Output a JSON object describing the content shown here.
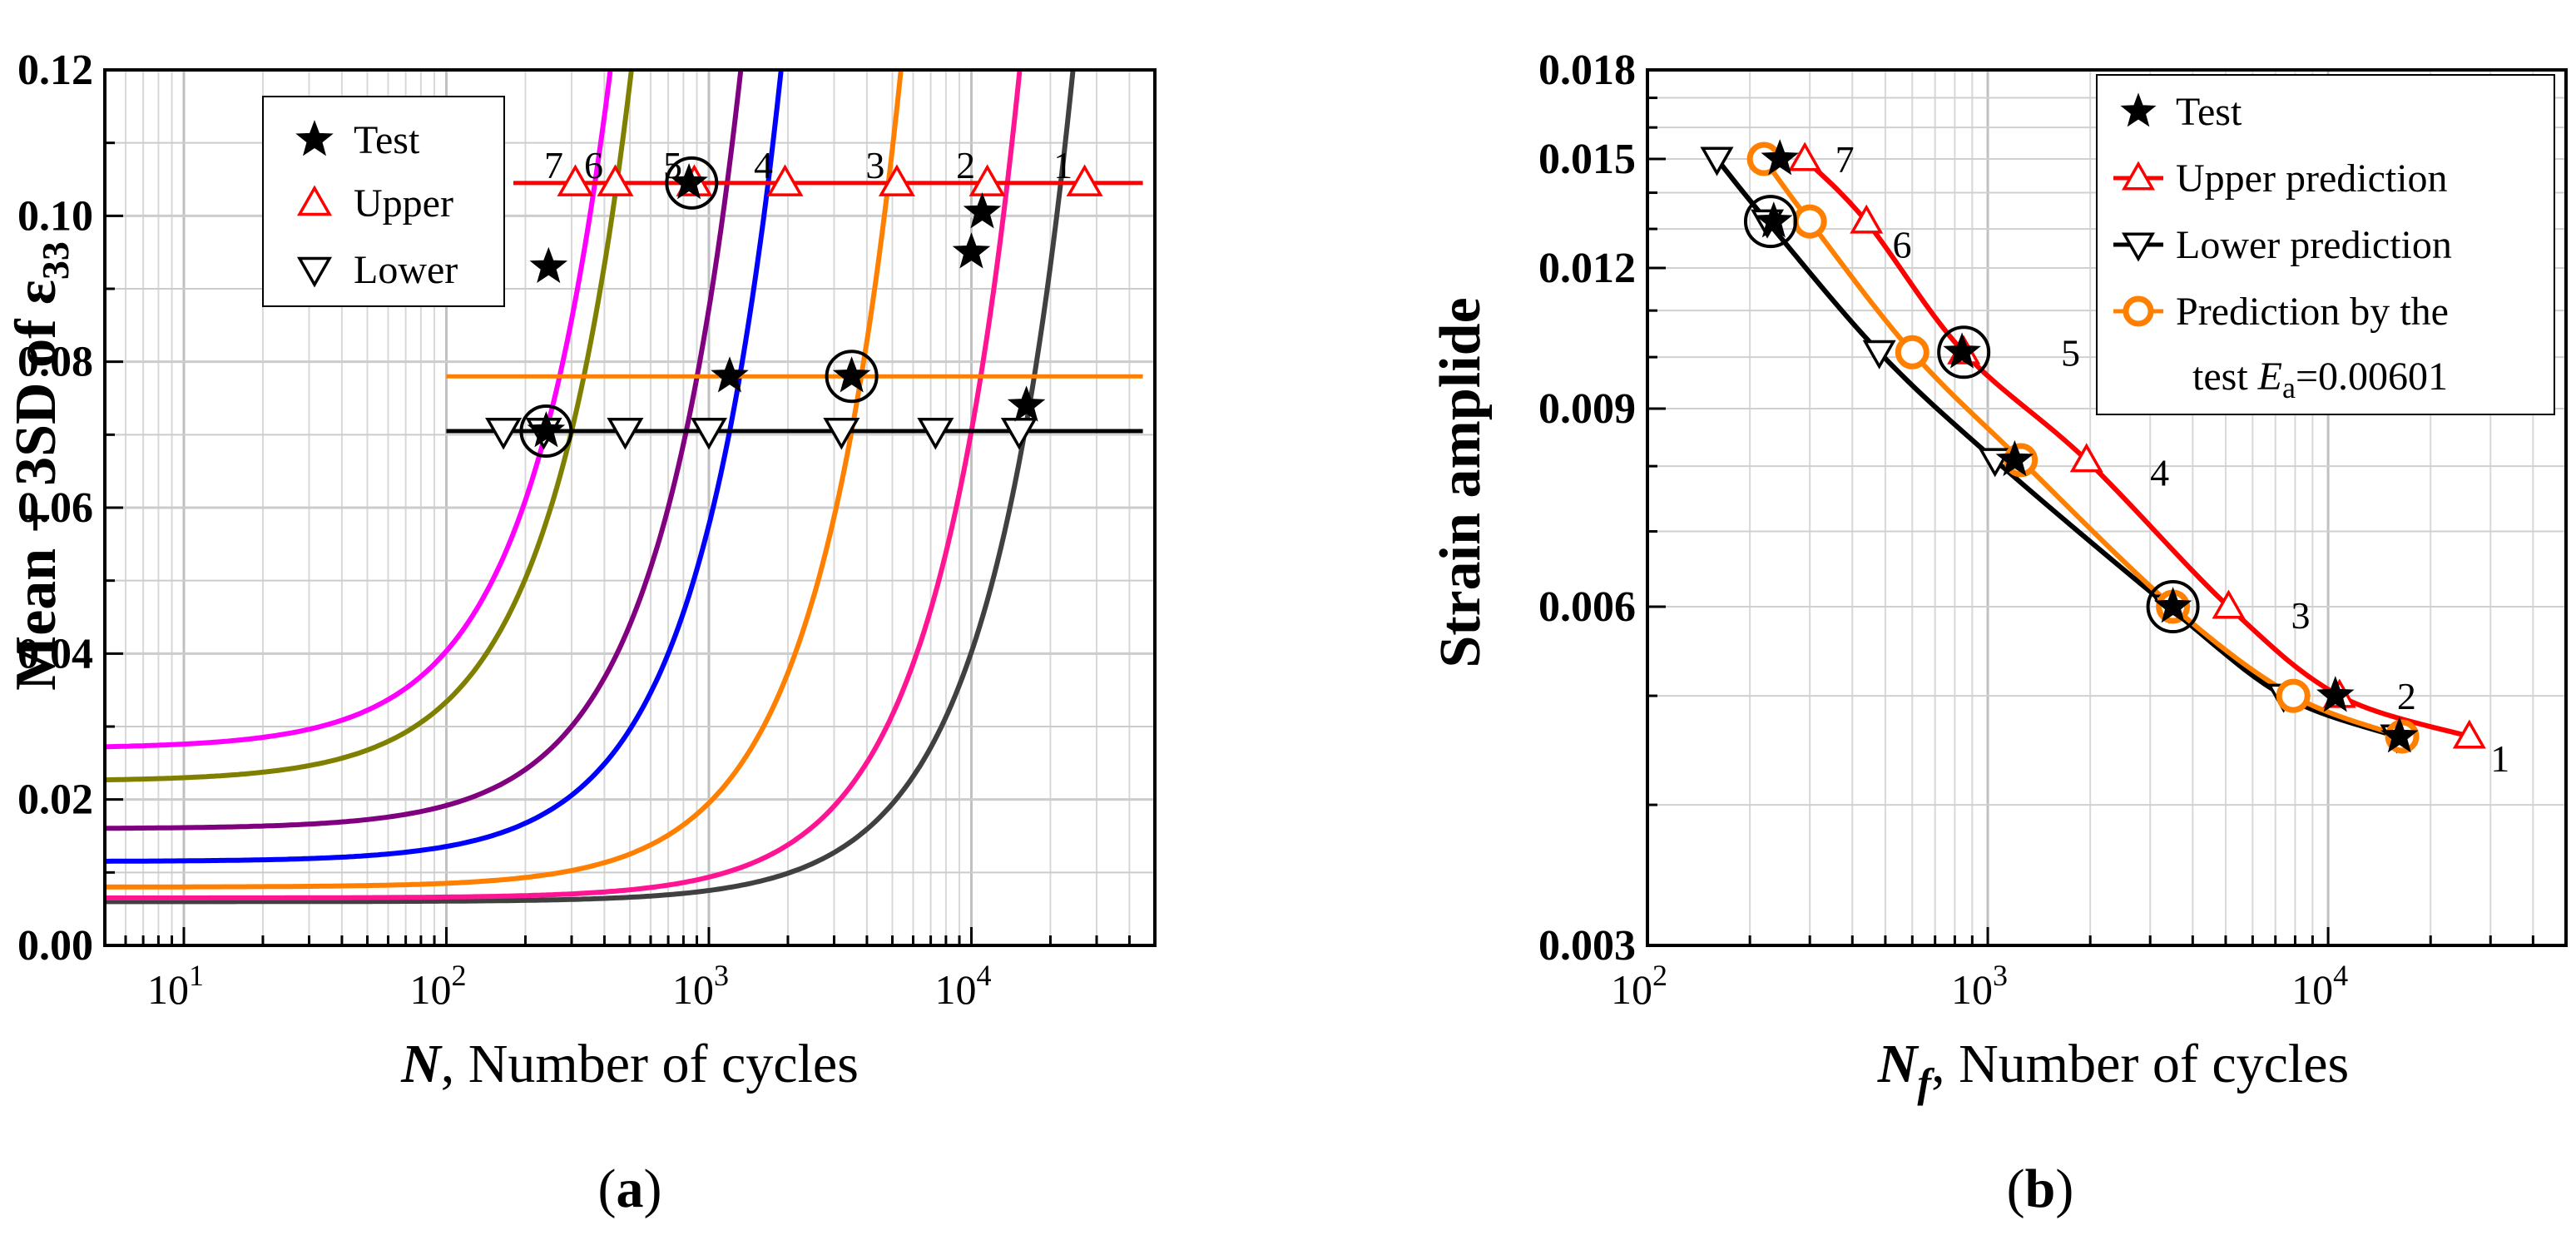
{
  "chart_data": [
    {
      "type": "line",
      "panel_label": "a",
      "ylabel_main": "Mean + 3SD of ",
      "ylabel_symbol": "ε",
      "ylabel_sub": "33",
      "ylabel_of": "of",
      "xlabel_var": "N",
      "xlabel_text": ", Number of cycles",
      "xscale": "log",
      "xlim": [
        5,
        50000
      ],
      "ylim": [
        0,
        0.12
      ],
      "yticks": [
        "0.00",
        "0.02",
        "0.04",
        "0.06",
        "0.08",
        "0.10",
        "0.12"
      ],
      "xticks_base": "10",
      "xticks_exp": [
        "1",
        "2",
        "3",
        "4"
      ],
      "legend": {
        "position": "top-left",
        "entries": [
          {
            "label": "Test",
            "marker": "star"
          },
          {
            "label": "Upper",
            "marker": "triangle-up"
          },
          {
            "label": "Lower",
            "marker": "triangle-down"
          }
        ]
      },
      "curves": [
        {
          "name": "1",
          "color": "#404040",
          "base": 0.006,
          "Nf": 16000
        },
        {
          "name": "2",
          "color": "#ff1493",
          "base": 0.0065,
          "Nf": 10000
        },
        {
          "name": "3",
          "color": "#ff8000",
          "base": 0.008,
          "Nf": 3500
        },
        {
          "name": "4",
          "color": "#0000ff",
          "base": 0.0115,
          "Nf": 1200
        },
        {
          "name": "5",
          "color": "#800080",
          "base": 0.016,
          "Nf": 820
        },
        {
          "name": "6",
          "color": "#808000",
          "base": 0.0225,
          "Nf": 300
        },
        {
          "name": "7",
          "color": "#ff00ff",
          "base": 0.027,
          "Nf": 240
        }
      ],
      "level_lines": [
        {
          "name": "upper",
          "y": 0.1045,
          "x_range": [
            180,
            45000
          ],
          "color": "#ff0000"
        },
        {
          "name": "test",
          "y": 0.078,
          "x_range": [
            100,
            45000
          ],
          "color": "#ff8000"
        },
        {
          "name": "lower",
          "y": 0.0705,
          "x_range": [
            100,
            45000
          ],
          "color": "#000000"
        }
      ],
      "upper_points": [
        {
          "id": "1",
          "x": 27000,
          "y": 0.1045
        },
        {
          "id": "2",
          "x": 11500,
          "y": 0.1045
        },
        {
          "id": "3",
          "x": 5200,
          "y": 0.1045
        },
        {
          "id": "4",
          "x": 1950,
          "y": 0.1045
        },
        {
          "id": "5",
          "x": 880,
          "y": 0.1045
        },
        {
          "id": "6",
          "x": 440,
          "y": 0.1045
        },
        {
          "id": "7",
          "x": 310,
          "y": 0.1045
        }
      ],
      "upper_labels": [
        "1",
        "2",
        "3",
        "4",
        "5",
        "6",
        "7"
      ],
      "lower_points": [
        {
          "id": "1",
          "x": 15200,
          "y": 0.0705
        },
        {
          "id": "2",
          "x": 7300,
          "y": 0.0705
        },
        {
          "id": "3",
          "x": 3200,
          "y": 0.0705
        },
        {
          "id": "4",
          "x": 1000,
          "y": 0.0705
        },
        {
          "id": "5",
          "x": 480,
          "y": 0.0705
        },
        {
          "id": "6",
          "x": 235,
          "y": 0.0705
        },
        {
          "id": "7",
          "x": 165,
          "y": 0.0705
        }
      ],
      "test_points": [
        {
          "id": "1",
          "x": 16200,
          "y": 0.074
        },
        {
          "id": "2",
          "x": 11000,
          "y": 0.1005
        },
        {
          "id": "2b",
          "x": 10000,
          "y": 0.095
        },
        {
          "id": "3",
          "x": 3500,
          "y": 0.078
        },
        {
          "id": "4",
          "x": 1200,
          "y": 0.078
        },
        {
          "id": "5",
          "x": 840,
          "y": 0.1045
        },
        {
          "id": "6",
          "x": 240,
          "y": 0.0705
        },
        {
          "id": "7",
          "x": 245,
          "y": 0.093
        }
      ],
      "circled_points": [
        {
          "x": 860,
          "y": 0.1045
        },
        {
          "x": 3500,
          "y": 0.078
        },
        {
          "x": 240,
          "y": 0.0705
        }
      ]
    },
    {
      "type": "line",
      "panel_label": "b",
      "ylabel": "Strain amplide",
      "xlabel_var": "N",
      "xlabel_sub": "f",
      "xlabel_text": ", Number of cycles",
      "xscale": "log",
      "yscale": "log",
      "xlim": [
        100,
        50000
      ],
      "ylim": [
        0.003,
        0.018
      ],
      "yticks": [
        "0.003",
        "0.006",
        "0.009",
        "0.012",
        "0.015",
        "0.018"
      ],
      "ytick_values": [
        0.003,
        0.006,
        0.009,
        0.012,
        0.015,
        0.018
      ],
      "xticks_base": "10",
      "xticks_exp": [
        "2",
        "3",
        "4"
      ],
      "legend": {
        "position": "top-right",
        "entries": [
          {
            "label": "Test",
            "marker": "star"
          },
          {
            "label": "Upper prediction",
            "marker": "triangle-up"
          },
          {
            "label": "Lower prediction",
            "marker": "triangle-down"
          },
          {
            "label": "Prediction by the",
            "label2_pre": "test ",
            "label2_var": "E",
            "label2_sub": "a",
            "label2_post": "=0.00601",
            "marker": "circle"
          }
        ]
      },
      "series": [
        {
          "name": "Upper prediction",
          "color": "#ff0000",
          "marker": "triangle-up",
          "x": [
            290,
            440,
            850,
            1950,
            5100,
            10800,
            26000
          ],
          "y": [
            0.015,
            0.0132,
            0.0101,
            0.0081,
            0.006,
            0.005,
            0.0046
          ]
        },
        {
          "name": "Lower prediction",
          "color": "#000000",
          "marker": "triangle-down",
          "x": [
            160,
            225,
            480,
            1050,
            3400,
            7400,
            15900
          ],
          "y": [
            0.015,
            0.0132,
            0.0101,
            0.0081,
            0.006,
            0.005,
            0.0046
          ]
        },
        {
          "name": "Prediction by the test Ea=0.00601",
          "color": "#ff8000",
          "marker": "circle",
          "x": [
            220,
            300,
            600,
            1250,
            3500,
            7900,
            16500
          ],
          "y": [
            0.015,
            0.0132,
            0.0101,
            0.0081,
            0.006,
            0.005,
            0.0046
          ]
        },
        {
          "name": "Test",
          "color": "#000000",
          "marker": "star",
          "x": [
            245,
            235,
            840,
            1200,
            3500,
            10500,
            16200
          ],
          "y": [
            0.015,
            0.0132,
            0.0101,
            0.0081,
            0.006,
            0.005,
            0.0046
          ]
        }
      ],
      "circled_points": [
        {
          "x": 230,
          "y": 0.0132
        },
        {
          "x": 850,
          "y": 0.0101
        },
        {
          "x": 3500,
          "y": 0.006
        }
      ],
      "point_labels": [
        {
          "text": "7",
          "x": 380,
          "y": 0.015
        },
        {
          "text": "6",
          "x": 560,
          "y": 0.0126
        },
        {
          "text": "5",
          "x": 1750,
          "y": 0.0101
        },
        {
          "text": "4",
          "x": 3200,
          "y": 0.0079
        },
        {
          "text": "3",
          "x": 8300,
          "y": 0.0059
        },
        {
          "text": "2",
          "x": 17000,
          "y": 0.005
        },
        {
          "text": "1",
          "x": 32000,
          "y": 0.0044
        }
      ]
    }
  ]
}
